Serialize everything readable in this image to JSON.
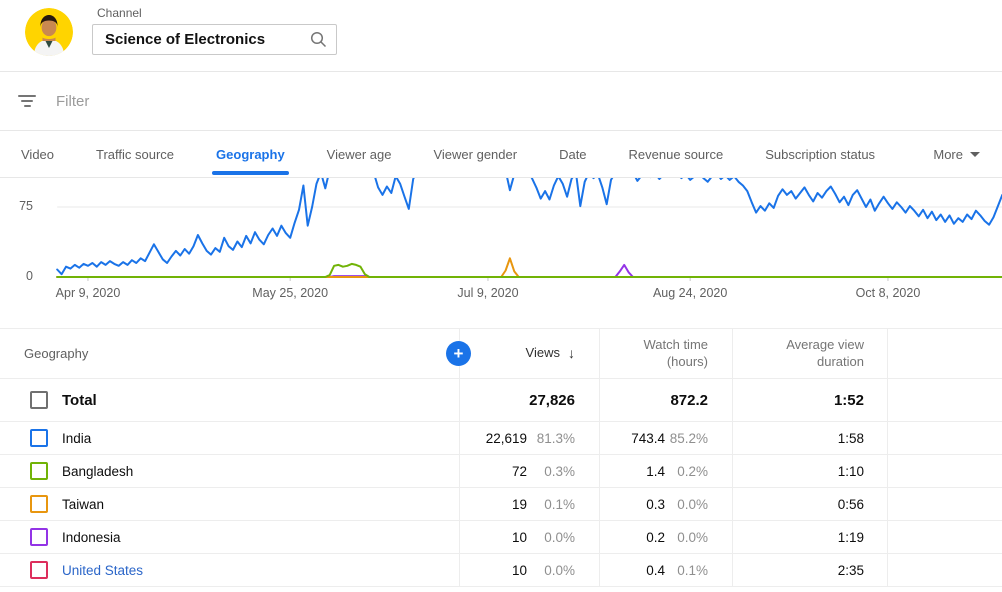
{
  "header": {
    "channel_label": "Channel",
    "channel_name": "Science of Electronics"
  },
  "filter": {
    "placeholder": "Filter"
  },
  "tabs": {
    "items": [
      "Video",
      "Traffic source",
      "Geography",
      "Viewer age",
      "Viewer gender",
      "Date",
      "Revenue source",
      "Subscription status"
    ],
    "active": "Geography",
    "more_label": "More"
  },
  "chart_data": {
    "type": "line",
    "title": "Views by geography over time (top of chart clipped in view)",
    "x_axis": "date",
    "x_tick_labels": [
      "Apr 9, 2020",
      "May 25, 2020",
      "Jul 9, 2020",
      "Aug 24, 2020",
      "Oct 8, 2020"
    ],
    "x_tick_days": [
      7,
      53,
      98,
      144,
      189
    ],
    "x_range_days": [
      0,
      215
    ],
    "y_ticks": [
      0,
      75
    ],
    "ylim_visible": [
      0,
      106
    ],
    "grid": "horizontal",
    "legend_position": "none",
    "series": [
      {
        "name": "India",
        "color": "#1a73e8",
        "points": [
          [
            0,
            8
          ],
          [
            1,
            3
          ],
          [
            2,
            11
          ],
          [
            3,
            9
          ],
          [
            4,
            13
          ],
          [
            5,
            10
          ],
          [
            6,
            14
          ],
          [
            7,
            12
          ],
          [
            8,
            15
          ],
          [
            9,
            11
          ],
          [
            10,
            16
          ],
          [
            11,
            13
          ],
          [
            12,
            17
          ],
          [
            13,
            14
          ],
          [
            14,
            12
          ],
          [
            15,
            16
          ],
          [
            16,
            13
          ],
          [
            17,
            18
          ],
          [
            18,
            15
          ],
          [
            19,
            20
          ],
          [
            20,
            17
          ],
          [
            21,
            26
          ],
          [
            22,
            35
          ],
          [
            23,
            27
          ],
          [
            24,
            19
          ],
          [
            25,
            15
          ],
          [
            26,
            22
          ],
          [
            27,
            28
          ],
          [
            28,
            23
          ],
          [
            29,
            30
          ],
          [
            30,
            25
          ],
          [
            31,
            33
          ],
          [
            32,
            45
          ],
          [
            33,
            36
          ],
          [
            34,
            28
          ],
          [
            35,
            24
          ],
          [
            36,
            31
          ],
          [
            37,
            27
          ],
          [
            38,
            42
          ],
          [
            39,
            33
          ],
          [
            40,
            29
          ],
          [
            41,
            38
          ],
          [
            42,
            32
          ],
          [
            43,
            44
          ],
          [
            44,
            36
          ],
          [
            45,
            48
          ],
          [
            46,
            40
          ],
          [
            47,
            35
          ],
          [
            48,
            45
          ],
          [
            49,
            52
          ],
          [
            50,
            44
          ],
          [
            51,
            55
          ],
          [
            52,
            47
          ],
          [
            53,
            42
          ],
          [
            54,
            58
          ],
          [
            55,
            72
          ],
          [
            56,
            98
          ],
          [
            57,
            55
          ],
          [
            58,
            75
          ],
          [
            59,
            100
          ],
          [
            60,
            112
          ],
          [
            61,
            95
          ],
          [
            62,
            115
          ],
          [
            63,
            108
          ],
          [
            64,
            118
          ],
          [
            65,
            112
          ],
          [
            66,
            120
          ],
          [
            67,
            114
          ],
          [
            68,
            108
          ],
          [
            69,
            116
          ],
          [
            70,
            110
          ],
          [
            71,
            118
          ],
          [
            72,
            112
          ],
          [
            73,
            96
          ],
          [
            74,
            88
          ],
          [
            75,
            97
          ],
          [
            76,
            90
          ],
          [
            77,
            108
          ],
          [
            78,
            100
          ],
          [
            79,
            86
          ],
          [
            80,
            73
          ],
          [
            81,
            105
          ],
          [
            82,
            115
          ],
          [
            83,
            110
          ],
          [
            84,
            118
          ],
          [
            85,
            112
          ],
          [
            86,
            108
          ],
          [
            87,
            116
          ],
          [
            88,
            110
          ],
          [
            89,
            118
          ],
          [
            90,
            113
          ],
          [
            91,
            119
          ],
          [
            92,
            112
          ],
          [
            93,
            117
          ],
          [
            94,
            110
          ],
          [
            95,
            115
          ],
          [
            96,
            108
          ],
          [
            97,
            114
          ],
          [
            98,
            118
          ],
          [
            99,
            111
          ],
          [
            100,
            116
          ],
          [
            101,
            110
          ],
          [
            102,
            114
          ],
          [
            103,
            93
          ],
          [
            104,
            110
          ],
          [
            105,
            115
          ],
          [
            106,
            109
          ],
          [
            107,
            113
          ],
          [
            108,
            106
          ],
          [
            109,
            96
          ],
          [
            110,
            84
          ],
          [
            111,
            92
          ],
          [
            112,
            83
          ],
          [
            113,
            98
          ],
          [
            114,
            108
          ],
          [
            115,
            100
          ],
          [
            116,
            86
          ],
          [
            117,
            105
          ],
          [
            118,
            112
          ],
          [
            119,
            76
          ],
          [
            120,
            102
          ],
          [
            121,
            112
          ],
          [
            122,
            106
          ],
          [
            123,
            110
          ],
          [
            124,
            96
          ],
          [
            125,
            78
          ],
          [
            126,
            104
          ],
          [
            127,
            112
          ],
          [
            128,
            108
          ],
          [
            129,
            114
          ],
          [
            130,
            108
          ],
          [
            131,
            112
          ],
          [
            132,
            103
          ],
          [
            133,
            109
          ],
          [
            134,
            113
          ],
          [
            135,
            107
          ],
          [
            136,
            111
          ],
          [
            137,
            105
          ],
          [
            138,
            110
          ],
          [
            139,
            114
          ],
          [
            140,
            108
          ],
          [
            141,
            112
          ],
          [
            142,
            106
          ],
          [
            143,
            110
          ],
          [
            144,
            104
          ],
          [
            145,
            108
          ],
          [
            146,
            112
          ],
          [
            147,
            106
          ],
          [
            148,
            102
          ],
          [
            149,
            108
          ],
          [
            150,
            112
          ],
          [
            151,
            105
          ],
          [
            152,
            109
          ],
          [
            153,
            104
          ],
          [
            154,
            108
          ],
          [
            155,
            102
          ],
          [
            156,
            98
          ],
          [
            157,
            92
          ],
          [
            158,
            80
          ],
          [
            159,
            69
          ],
          [
            160,
            76
          ],
          [
            161,
            71
          ],
          [
            162,
            79
          ],
          [
            163,
            74
          ],
          [
            164,
            87
          ],
          [
            165,
            94
          ],
          [
            166,
            88
          ],
          [
            167,
            92
          ],
          [
            168,
            84
          ],
          [
            169,
            90
          ],
          [
            170,
            96
          ],
          [
            171,
            88
          ],
          [
            172,
            81
          ],
          [
            173,
            90
          ],
          [
            174,
            85
          ],
          [
            175,
            92
          ],
          [
            176,
            97
          ],
          [
            177,
            89
          ],
          [
            178,
            80
          ],
          [
            179,
            86
          ],
          [
            180,
            77
          ],
          [
            181,
            88
          ],
          [
            182,
            93
          ],
          [
            183,
            84
          ],
          [
            184,
            75
          ],
          [
            185,
            83
          ],
          [
            186,
            71
          ],
          [
            187,
            79
          ],
          [
            188,
            86
          ],
          [
            189,
            79
          ],
          [
            190,
            73
          ],
          [
            191,
            80
          ],
          [
            192,
            75
          ],
          [
            193,
            69
          ],
          [
            194,
            76
          ],
          [
            195,
            71
          ],
          [
            196,
            65
          ],
          [
            197,
            72
          ],
          [
            198,
            63
          ],
          [
            199,
            70
          ],
          [
            200,
            61
          ],
          [
            201,
            67
          ],
          [
            202,
            59
          ],
          [
            203,
            66
          ],
          [
            204,
            57
          ],
          [
            205,
            63
          ],
          [
            206,
            59
          ],
          [
            207,
            67
          ],
          [
            208,
            62
          ],
          [
            209,
            71
          ],
          [
            210,
            66
          ],
          [
            211,
            60
          ],
          [
            212,
            56
          ],
          [
            213,
            64
          ],
          [
            214,
            76
          ],
          [
            215,
            88
          ]
        ]
      },
      {
        "name": "Bangladesh",
        "color": "#71b307",
        "points": [
          [
            0,
            0
          ],
          [
            61,
            0
          ],
          [
            62,
            2
          ],
          [
            63,
            12
          ],
          [
            64,
            13
          ],
          [
            65,
            11
          ],
          [
            66,
            12
          ],
          [
            67,
            14
          ],
          [
            68,
            13
          ],
          [
            69,
            11
          ],
          [
            70,
            3
          ],
          [
            71,
            0
          ],
          [
            215,
            0
          ]
        ]
      },
      {
        "name": "Taiwan",
        "color": "#e8960f",
        "points": [
          [
            0,
            0
          ],
          [
            101,
            0
          ],
          [
            102,
            7
          ],
          [
            103,
            20
          ],
          [
            104,
            6
          ],
          [
            105,
            0
          ],
          [
            215,
            0
          ]
        ]
      },
      {
        "name": "Indonesia",
        "color": "#9334e6",
        "points": [
          [
            0,
            0
          ],
          [
            62,
            0
          ],
          [
            63,
            1
          ],
          [
            70,
            1
          ],
          [
            71,
            0
          ],
          [
            127,
            0
          ],
          [
            128,
            6
          ],
          [
            129,
            13
          ],
          [
            130,
            5
          ],
          [
            131,
            0
          ],
          [
            215,
            0
          ]
        ]
      },
      {
        "name": "United States",
        "color": "#dd2e5c",
        "points": [
          [
            0,
            0
          ],
          [
            215,
            0
          ]
        ]
      }
    ]
  },
  "table": {
    "geo_header": "Geography",
    "views_header": "Views",
    "sort_icon": "↓",
    "watch_header": "Watch time (hours)",
    "avg_header": "Average view duration",
    "add_column_icon": "+",
    "total": {
      "label": "Total",
      "views": "27,826",
      "watch_hours": "872.2",
      "avg_duration": "1:52"
    },
    "rows": [
      {
        "label": "India",
        "color": "#1a73e8",
        "label_color": "#0d0d0d",
        "views": "22,619",
        "views_pct": "81.3%",
        "watch": "743.4",
        "watch_pct": "85.2%",
        "avg": "1:58"
      },
      {
        "label": "Bangladesh",
        "color": "#71b307",
        "label_color": "#0d0d0d",
        "views": "72",
        "views_pct": "0.3%",
        "watch": "1.4",
        "watch_pct": "0.2%",
        "avg": "1:10"
      },
      {
        "label": "Taiwan",
        "color": "#e8960f",
        "label_color": "#0d0d0d",
        "views": "19",
        "views_pct": "0.1%",
        "watch": "0.3",
        "watch_pct": "0.0%",
        "avg": "0:56"
      },
      {
        "label": "Indonesia",
        "color": "#9334e6",
        "label_color": "#0d0d0d",
        "views": "10",
        "views_pct": "0.0%",
        "watch": "0.2",
        "watch_pct": "0.0%",
        "avg": "1:19"
      },
      {
        "label": "United States",
        "color": "#dd2e5c",
        "label_color": "#2b66c9",
        "views": "10",
        "views_pct": "0.0%",
        "watch": "0.4",
        "watch_pct": "0.1%",
        "avg": "2:35"
      }
    ]
  }
}
